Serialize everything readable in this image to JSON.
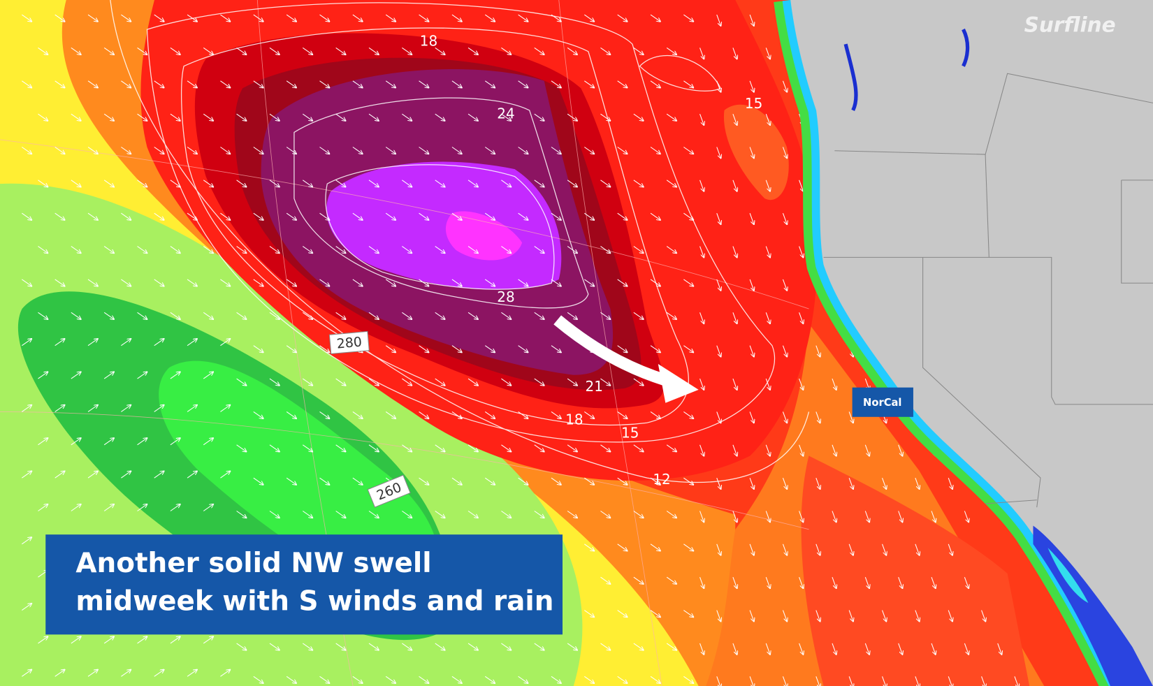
{
  "logo": "Surfline",
  "caption": {
    "lines": [
      "Another solid NW swell",
      "midweek with S winds and rain"
    ]
  },
  "region_label": "NorCal",
  "contour_labels": [
    18,
    24,
    28,
    21,
    18,
    15,
    12,
    15
  ],
  "direction_labels": [
    280,
    260
  ]
}
